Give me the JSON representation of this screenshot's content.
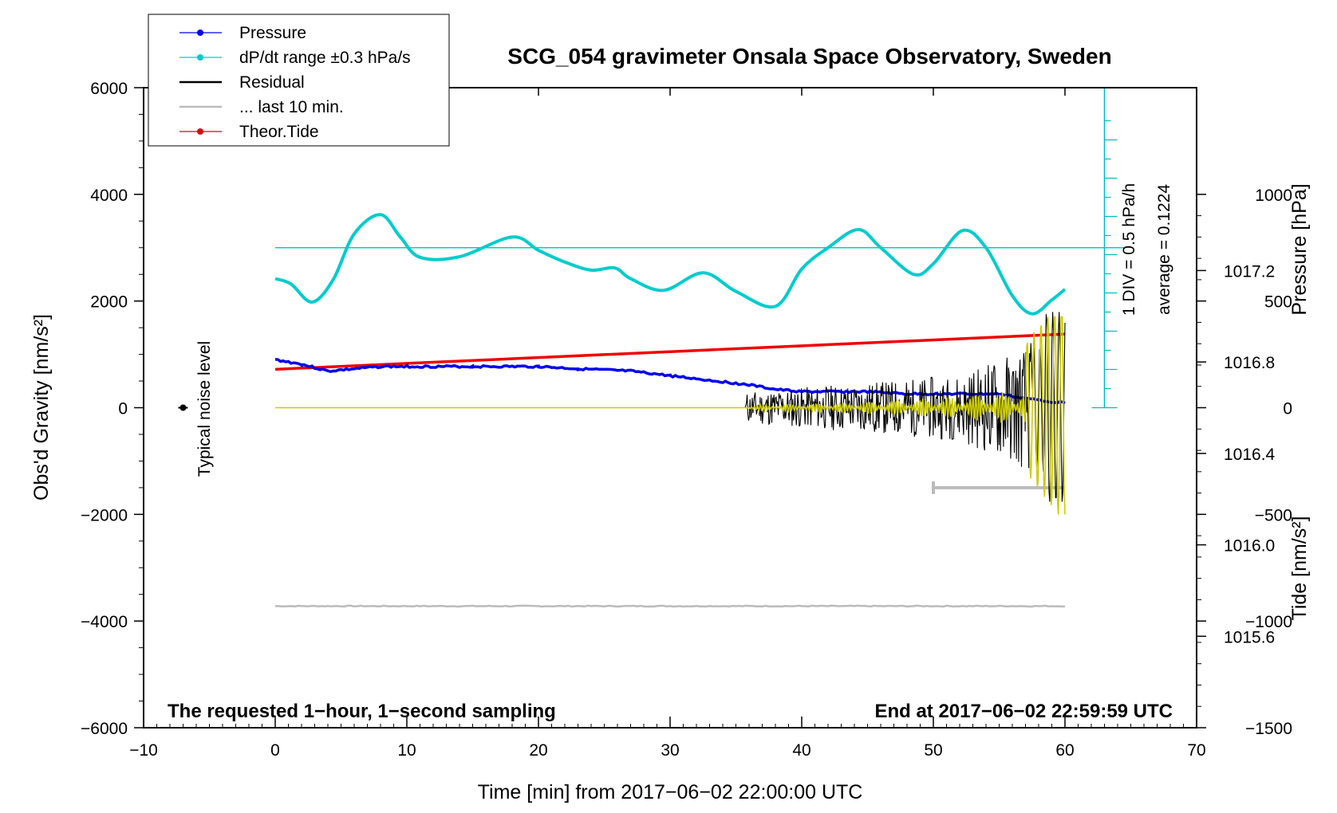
{
  "chart_data": {
    "type": "line",
    "title": "SCG_054 gravimeter Onsala Space Observatory, Sweden",
    "xlabel": "Time [min] from 2017−06−02 22:00:00 UTC",
    "ylabel_left": "Obs'd Gravity [nm/s²]",
    "ylabel_right_top": "Pressure [hPa]",
    "ylabel_right_bottom": "Tide [nm/s²]",
    "xlim": [
      -10,
      70
    ],
    "ylim_left": [
      -6000,
      6000
    ],
    "ylim_pressure": [
      1015.2,
      1018.0
    ],
    "ylim_tide": [
      -1500,
      1500
    ],
    "x_ticks": [
      -10,
      0,
      10,
      20,
      30,
      40,
      50,
      60,
      70
    ],
    "x_tick_labels": [
      "−10",
      "0",
      "10",
      "20",
      "30",
      "40",
      "50",
      "60",
      "70"
    ],
    "y_left_ticks": [
      6000,
      4000,
      2000,
      0,
      -2000,
      -4000,
      -6000
    ],
    "y_left_tick_labels": [
      "6000",
      "4000",
      "2000",
      "0",
      "−2000",
      "−4000",
      "−6000"
    ],
    "pressure_ticks": [
      1017.2,
      1016.8,
      1016.4,
      1016.0,
      1015.6
    ],
    "pressure_tick_labels": [
      "1017.2",
      "1016.8",
      "1016.4",
      "1016.0",
      "1015.6"
    ],
    "tide_ticks": [
      1000,
      500,
      0,
      -500,
      -1000,
      -1500
    ],
    "tide_tick_labels": [
      "1000",
      "500",
      "0",
      "−500",
      "−1000",
      "−1500"
    ],
    "legend": [
      {
        "label": "Pressure",
        "color": "#0000ee",
        "marker": true
      },
      {
        "label": "dP/dt range ±0.3 hPa/s",
        "color": "#00cccc",
        "marker": true
      },
      {
        "label": "Residual",
        "color": "#000000",
        "marker": false
      },
      {
        "label": "... last 10 min.",
        "color": "#bbbbbb",
        "marker": false
      },
      {
        "label": "Theor.Tide",
        "color": "#ee0000",
        "marker": true
      }
    ],
    "series": [
      {
        "name": "Pressure",
        "units": "hPa",
        "color": "#0000ee",
        "x": [
          0,
          2,
          4,
          6,
          8,
          10,
          15,
          20,
          23,
          27,
          30,
          33,
          36,
          38,
          40,
          43,
          45,
          48,
          52,
          55,
          57,
          60
        ],
        "values": [
          1016.81,
          1016.79,
          1016.76,
          1016.77,
          1016.78,
          1016.78,
          1016.78,
          1016.78,
          1016.77,
          1016.76,
          1016.74,
          1016.72,
          1016.7,
          1016.68,
          1016.67,
          1016.67,
          1016.67,
          1016.66,
          1016.66,
          1016.66,
          1016.64,
          1016.62
        ]
      },
      {
        "name": "dP/dt",
        "units": "nm/s² axis",
        "color": "#00cccc",
        "x": [
          0,
          1.2,
          2.8,
          4.4,
          6,
          8,
          9.5,
          11,
          14,
          18,
          20,
          22,
          24,
          25.8,
          27,
          29.5,
          32.5,
          35,
          38,
          40,
          42,
          44.3,
          46,
          48.5,
          50,
          52.2,
          54,
          56,
          57.5,
          59,
          60
        ],
        "values": [
          2420,
          2320,
          1980,
          2400,
          3260,
          3620,
          3200,
          2820,
          2830,
          3200,
          2950,
          2730,
          2580,
          2620,
          2420,
          2200,
          2530,
          2180,
          1900,
          2600,
          3000,
          3340,
          3000,
          2500,
          2700,
          3320,
          3000,
          2100,
          1760,
          2020,
          2220
        ]
      },
      {
        "name": "Residual",
        "units": "nm/s²",
        "color": "#000000",
        "start": 35.8,
        "end": 60
      },
      {
        "name": "Theor.Tide",
        "units": "nm/s²",
        "color": "#ee0000",
        "x": [
          0,
          60
        ],
        "values": [
          180,
          345
        ]
      },
      {
        "name": "... last 10 min.",
        "units": "nm/s²",
        "color": "#bbbbbb",
        "x": [
          0,
          60
        ],
        "values": [
          -3720,
          -3720
        ]
      }
    ],
    "reference_line": {
      "name": "dP/dt zero",
      "y": 3000,
      "color": "#00cccc"
    },
    "pressure_scale_label": "1 DIV = 0.5 hPa/h",
    "pressure_average_label": "average = 0.1224",
    "last10_bar": {
      "x": [
        50,
        60
      ],
      "y": -1500
    },
    "noise_point": {
      "x": -7,
      "y": 0
    },
    "annotations": {
      "noise_label": "Typical noise level",
      "bottom_left": "The requested 1−hour, 1−second sampling",
      "bottom_right": "End at 2017−06−02 22:59:59 UTC"
    }
  }
}
